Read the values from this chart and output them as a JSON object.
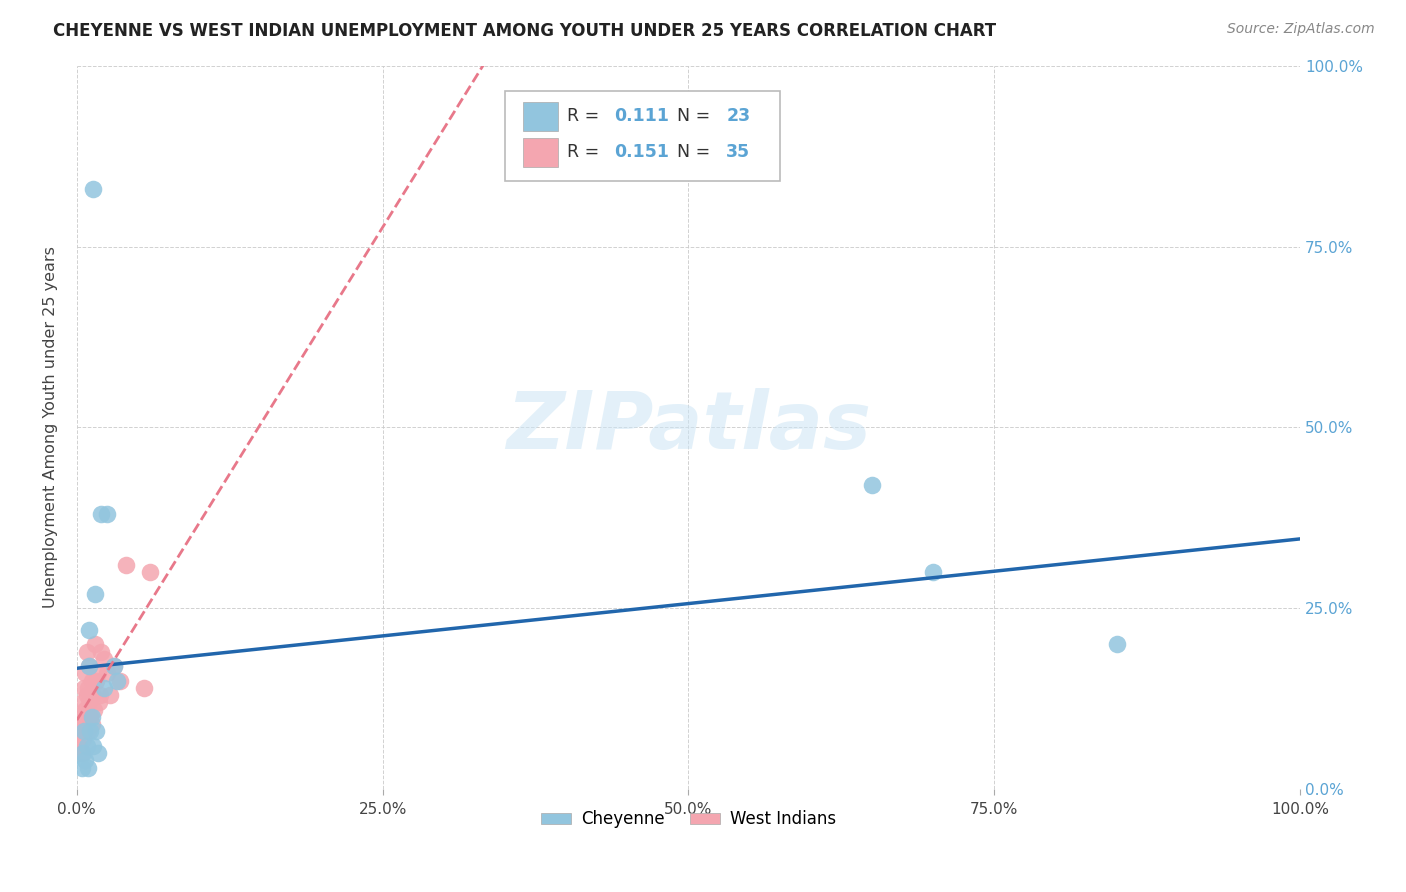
{
  "title": "CHEYENNE VS WEST INDIAN UNEMPLOYMENT AMONG YOUTH UNDER 25 YEARS CORRELATION CHART",
  "source": "Source: ZipAtlas.com",
  "ylabel": "Unemployment Among Youth under 25 years",
  "cheyenne_label": "Cheyenne",
  "west_indian_label": "West Indians",
  "cheyenne_R": 0.111,
  "cheyenne_N": 23,
  "west_indian_R": 0.151,
  "west_indian_N": 35,
  "cheyenne_color": "#92c5de",
  "west_indian_color": "#f4a6b0",
  "cheyenne_line_color": "#2166ac",
  "west_indian_line_color": "#e8788a",
  "background_color": "#ffffff",
  "xlim": [
    0.0,
    1.0
  ],
  "ylim": [
    0.0,
    1.0
  ],
  "cheyenne_x": [
    0.004,
    0.005,
    0.006,
    0.007,
    0.008,
    0.009,
    0.01,
    0.01,
    0.011,
    0.012,
    0.013,
    0.015,
    0.016,
    0.017,
    0.02,
    0.022,
    0.025,
    0.03,
    0.033,
    0.013,
    0.65,
    0.7,
    0.85
  ],
  "cheyenne_y": [
    0.03,
    0.05,
    0.08,
    0.04,
    0.06,
    0.03,
    0.22,
    0.17,
    0.08,
    0.1,
    0.06,
    0.27,
    0.08,
    0.05,
    0.38,
    0.14,
    0.38,
    0.17,
    0.15,
    0.83,
    0.42,
    0.3,
    0.2
  ],
  "west_indian_x": [
    0.002,
    0.003,
    0.004,
    0.004,
    0.005,
    0.005,
    0.006,
    0.006,
    0.007,
    0.007,
    0.008,
    0.008,
    0.009,
    0.009,
    0.01,
    0.01,
    0.011,
    0.012,
    0.012,
    0.013,
    0.014,
    0.015,
    0.016,
    0.017,
    0.018,
    0.019,
    0.02,
    0.022,
    0.025,
    0.027,
    0.03,
    0.035,
    0.04,
    0.055,
    0.06
  ],
  "west_indian_y": [
    0.06,
    0.08,
    0.1,
    0.05,
    0.12,
    0.07,
    0.14,
    0.09,
    0.16,
    0.11,
    0.13,
    0.19,
    0.08,
    0.14,
    0.12,
    0.17,
    0.1,
    0.15,
    0.09,
    0.13,
    0.11,
    0.2,
    0.15,
    0.16,
    0.12,
    0.13,
    0.19,
    0.18,
    0.16,
    0.13,
    0.17,
    0.15,
    0.31,
    0.14,
    0.3
  ]
}
